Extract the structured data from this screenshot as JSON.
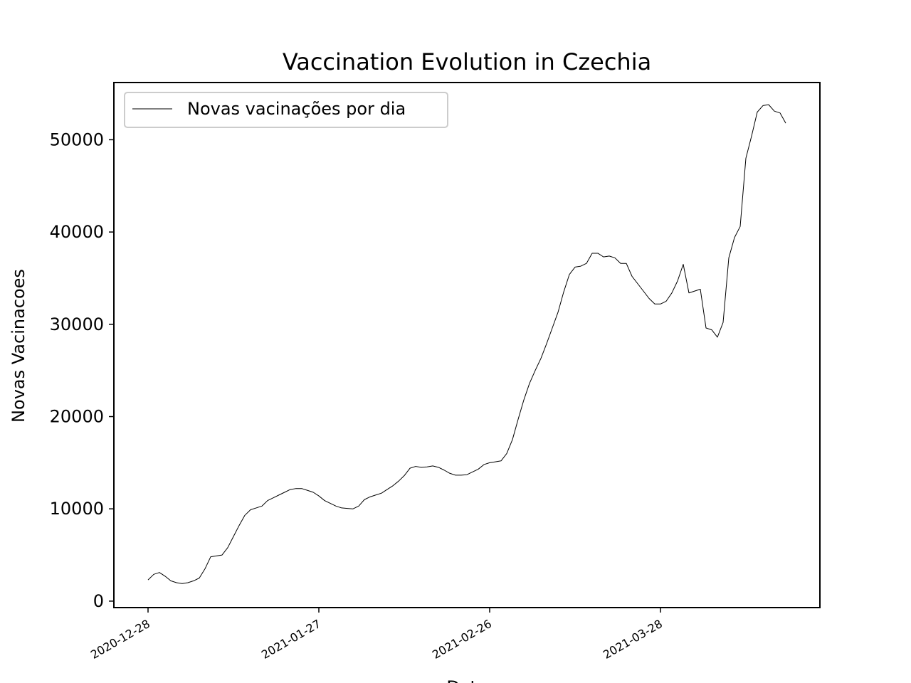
{
  "chart_data": {
    "type": "line",
    "title": "Vaccination Evolution in Czechia",
    "xlabel": "Data",
    "ylabel": "Novas Vacinacoes",
    "x_start": "2020-12-28",
    "x_end": "2021-04-22",
    "xlim": [
      "2020-12-22",
      "2021-04-25"
    ],
    "ylim": [
      -700,
      56200
    ],
    "xticks": [
      "2020-12-28",
      "2021-01-27",
      "2021-02-26",
      "2021-03-28"
    ],
    "yticks": [
      0,
      10000,
      20000,
      30000,
      40000,
      50000
    ],
    "ytick_labels": [
      "0",
      "10000",
      "20000",
      "30000",
      "40000",
      "50000"
    ],
    "grid": false,
    "legend_position": "upper-left",
    "line_color": "#000000",
    "series": [
      {
        "name": "Novas vacinações por dia",
        "values": [
          2300,
          2900,
          3100,
          2700,
          2200,
          2000,
          1900,
          2000,
          2200,
          2500,
          3500,
          4800,
          4900,
          5000,
          5800,
          7000,
          8200,
          9300,
          9900,
          10100,
          10300,
          10900,
          11200,
          11500,
          11800,
          12100,
          12200,
          12200,
          12000,
          11800,
          11400,
          10900,
          10600,
          10300,
          10100,
          10050,
          10000,
          10300,
          11000,
          11300,
          11500,
          11700,
          12100,
          12500,
          13000,
          13600,
          14400,
          14600,
          14500,
          14550,
          14650,
          14500,
          14200,
          13850,
          13650,
          13650,
          13700,
          14000,
          14300,
          14800,
          15000,
          15100,
          15200,
          16000,
          17500,
          19700,
          21800,
          23600,
          25000,
          26300,
          27900,
          29600,
          31300,
          33500,
          35400,
          36200,
          36300,
          36600,
          37700,
          37700,
          37300,
          37400,
          37200,
          36600,
          36600,
          35200,
          34400,
          33600,
          32800,
          32200,
          32200,
          32500,
          33400,
          34700,
          36500,
          33400,
          33600,
          33800,
          29600,
          29400,
          28600,
          30200,
          37200,
          39400,
          40600,
          48000,
          50400,
          53000,
          53700,
          53800,
          53100,
          52900,
          51800
        ]
      }
    ]
  }
}
